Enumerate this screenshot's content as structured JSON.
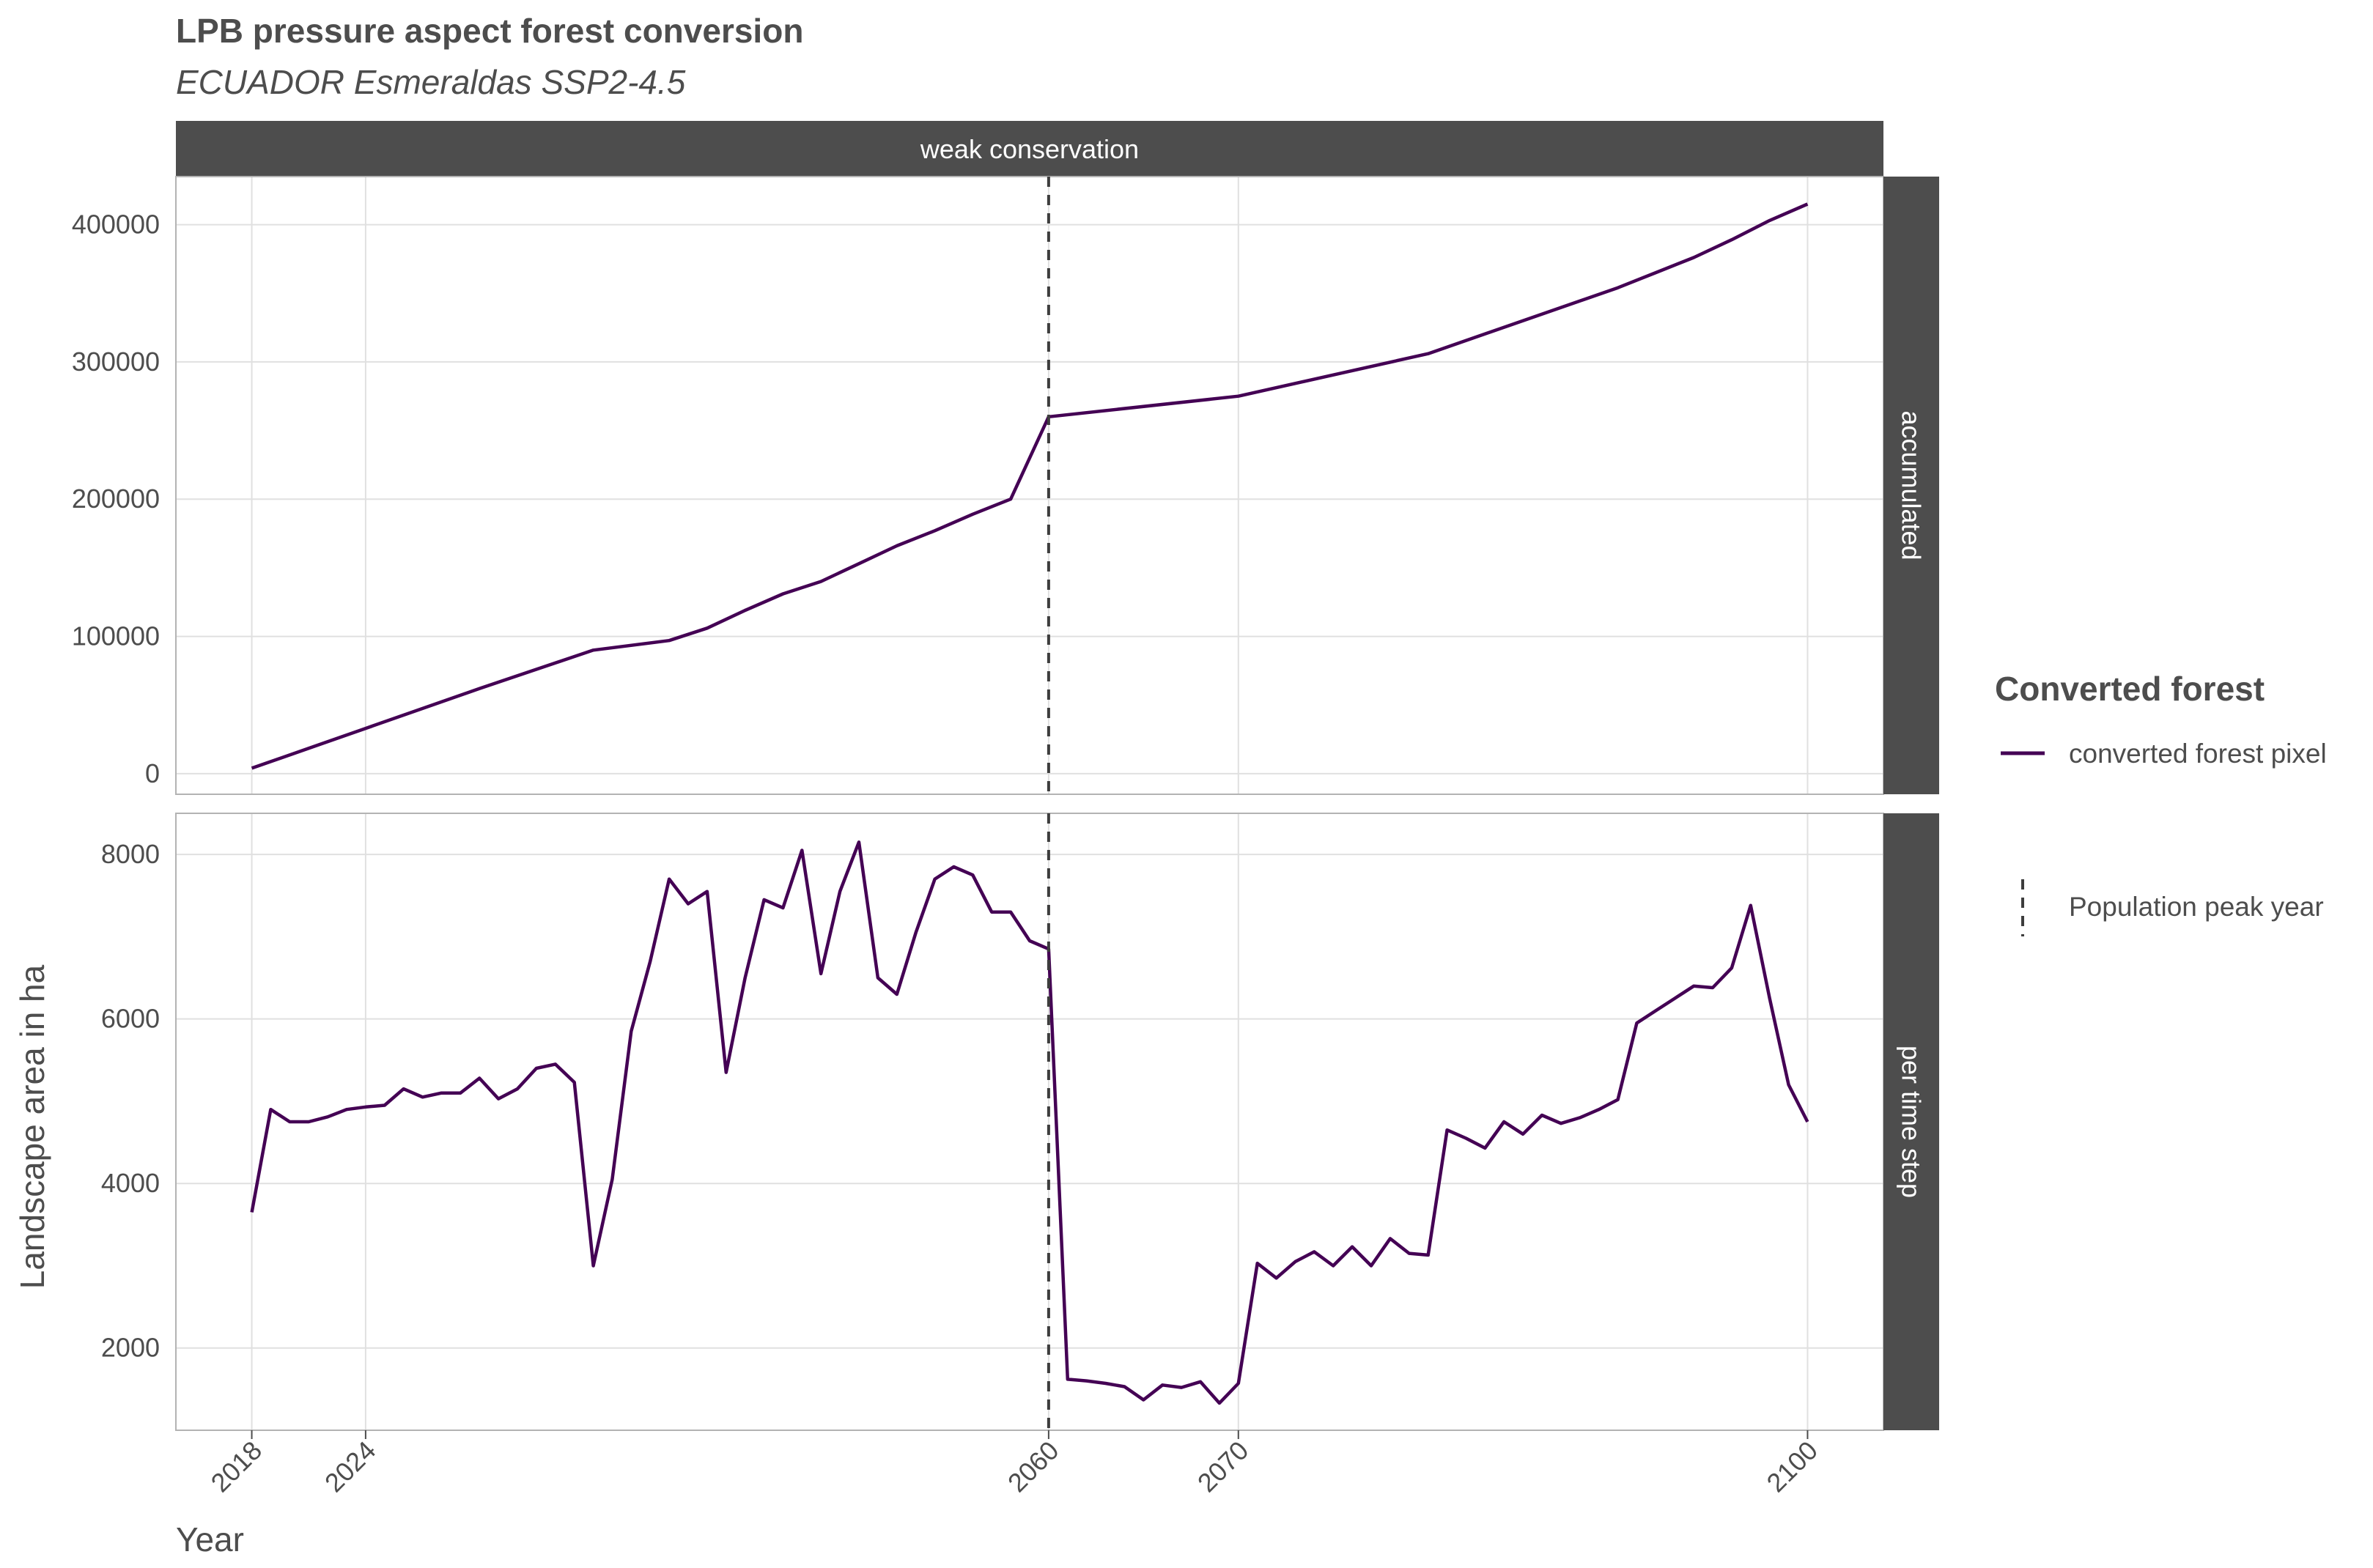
{
  "chart_data": {
    "type": "line",
    "title": "LPB pressure aspect forest conversion",
    "subtitle": "ECUADOR Esmeraldas SSP2-4.5",
    "xlabel": "Year",
    "ylabel": "Landscape area in ha",
    "column_strip": "weak conservation",
    "x_ticks": [
      2018,
      2024,
      2060,
      2070,
      2100
    ],
    "xlim": [
      2014,
      2104
    ],
    "vline": {
      "x": 2060,
      "label": "Population peak year"
    },
    "legend": {
      "title": "Converted forest",
      "series_label": "converted forest pixel",
      "vline_label": "Population peak year"
    },
    "colors": {
      "series": "#440154",
      "vline": "#3d3d3d",
      "strip": "#4d4d4d",
      "grid": "#e0e0e0"
    },
    "panels": [
      {
        "name": "accumulated",
        "ylim": [
          -15000,
          435000
        ],
        "y_ticks": [
          0,
          100000,
          200000,
          300000,
          400000
        ],
        "x": [
          2018,
          2024,
          2030,
          2036,
          2040,
          2042,
          2044,
          2046,
          2048,
          2050,
          2052,
          2054,
          2056,
          2058,
          2060,
          2070,
          2080,
          2090,
          2092,
          2094,
          2096,
          2098,
          2100
        ],
        "values": [
          4000,
          33000,
          62000,
          90000,
          97000,
          106000,
          119000,
          131000,
          140000,
          153000,
          166000,
          177000,
          189000,
          200000,
          260000,
          275000,
          306000,
          354000,
          365000,
          376000,
          389000,
          403000,
          415000
        ]
      },
      {
        "name": "per time step",
        "ylim": [
          1000,
          8500
        ],
        "y_ticks": [
          2000,
          4000,
          6000,
          8000
        ],
        "x": [
          2018,
          2019,
          2020,
          2021,
          2022,
          2023,
          2024,
          2025,
          2026,
          2027,
          2028,
          2029,
          2030,
          2031,
          2032,
          2033,
          2034,
          2035,
          2036,
          2037,
          2038,
          2039,
          2040,
          2041,
          2042,
          2043,
          2044,
          2045,
          2046,
          2047,
          2048,
          2049,
          2050,
          2051,
          2052,
          2053,
          2054,
          2055,
          2056,
          2057,
          2058,
          2059,
          2060,
          2061,
          2062,
          2063,
          2064,
          2065,
          2066,
          2067,
          2068,
          2069,
          2070,
          2071,
          2072,
          2073,
          2074,
          2075,
          2076,
          2077,
          2078,
          2079,
          2080,
          2081,
          2082,
          2083,
          2084,
          2085,
          2086,
          2087,
          2088,
          2089,
          2090,
          2091,
          2092,
          2093,
          2094,
          2095,
          2096,
          2097,
          2098,
          2099,
          2100
        ],
        "values": [
          3650,
          4900,
          4750,
          4750,
          4810,
          4900,
          4930,
          4950,
          5150,
          5050,
          5100,
          5100,
          5280,
          5030,
          5150,
          5400,
          5450,
          5230,
          3000,
          4050,
          5850,
          6700,
          7700,
          7400,
          7550,
          5350,
          6500,
          7450,
          7350,
          8050,
          6550,
          7550,
          8150,
          6500,
          6300,
          7050,
          7700,
          7850,
          7750,
          7300,
          7300,
          6950,
          6850,
          1620,
          1600,
          1570,
          1530,
          1370,
          1550,
          1520,
          1590,
          1330,
          1570,
          3030,
          2850,
          3050,
          3170,
          3000,
          3230,
          3000,
          3330,
          3150,
          3130,
          4650,
          4550,
          4430,
          4750,
          4600,
          4830,
          4730,
          4800,
          4900,
          5020,
          5950,
          6100,
          6250,
          6400,
          6380,
          6620,
          7380,
          6250,
          5200,
          4750
        ]
      }
    ]
  }
}
